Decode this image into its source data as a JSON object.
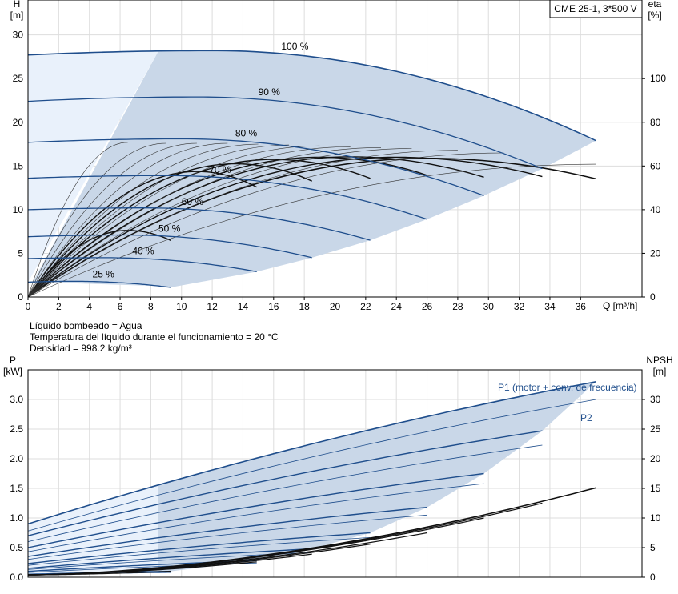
{
  "chart_data": [
    {
      "type": "line",
      "title": "CME 25-1, 3*500 V",
      "xlabel": "Q [m³/h]",
      "ylabel_left": "H",
      "ylabel_left_unit": "[m]",
      "ylabel_right": "eta",
      "ylabel_right_unit": "[%]",
      "xlim": [
        0,
        40
      ],
      "ylim_left": [
        0,
        34
      ],
      "ylim_right": [
        0,
        136
      ],
      "x_ticks": [
        "0",
        "2",
        "4",
        "6",
        "8",
        "10",
        "12",
        "14",
        "16",
        "18",
        "20",
        "22",
        "24",
        "26",
        "28",
        "30",
        "32",
        "34",
        "36"
      ],
      "y_left_ticks": [
        "0",
        "5",
        "10",
        "15",
        "20",
        "25",
        "30"
      ],
      "y_right_ticks": [
        "0",
        "20",
        "40",
        "60",
        "80",
        "100"
      ],
      "grid": true,
      "head_curves": [
        {
          "name": "100 %",
          "q_max": 37,
          "h0": 27.7,
          "h_max": 28.2,
          "q_top": 12,
          "h_end": 17.9
        },
        {
          "name": "90 %",
          "q_max": 33.5,
          "h0": 22.4,
          "h_max": 22.9,
          "q_top": 11,
          "h_end": 14.7
        },
        {
          "name": "80 %",
          "q_max": 29.7,
          "h0": 17.7,
          "h_max": 18.1,
          "q_top": 10,
          "h_end": 11.6
        },
        {
          "name": "70 %",
          "q_max": 26,
          "h0": 13.6,
          "h_max": 13.9,
          "q_top": 9,
          "h_end": 8.9
        },
        {
          "name": "60 %",
          "q_max": 22.3,
          "h0": 10.0,
          "h_max": 10.2,
          "q_top": 7.6,
          "h_end": 6.5
        },
        {
          "name": "50 %",
          "q_max": 18.5,
          "h0": 6.9,
          "h_max": 7.1,
          "q_top": 6.2,
          "h_end": 4.5
        },
        {
          "name": "40 %",
          "q_max": 14.9,
          "h0": 4.4,
          "h_max": 4.5,
          "q_top": 5,
          "h_end": 2.9
        },
        {
          "name": "25 %",
          "q_max": 9.3,
          "h0": 1.7,
          "h_max": 1.8,
          "q_top": 3,
          "h_end": 1.1
        }
      ],
      "eta_curves": [
        {
          "q_max": 37,
          "eta_max": 63.5,
          "q_peak": 26
        },
        {
          "q_max": 33.5,
          "eta_max": 64,
          "q_peak": 24
        },
        {
          "q_max": 29.7,
          "eta_max": 64.2,
          "q_peak": 21
        },
        {
          "q_max": 26,
          "eta_max": 64,
          "q_peak": 19
        },
        {
          "q_max": 22.3,
          "eta_max": 63,
          "q_peak": 16
        },
        {
          "q_max": 18.5,
          "eta_max": 61,
          "q_peak": 13.5
        },
        {
          "q_max": 14.9,
          "eta_max": 57.5,
          "q_peak": 11
        },
        {
          "q_max": 9.3,
          "eta_max": 30.5,
          "q_peak": 6.5
        }
      ],
      "annotations": [
        "Líquido bombeado = Agua",
        "Temperatura del líquido durante el funcionamiento = 20 °C",
        "Densidad = 998.2 kg/m³"
      ]
    },
    {
      "type": "line",
      "ylabel_left": "P",
      "ylabel_left_unit": "[kW]",
      "ylabel_right": "NPSH",
      "ylabel_right_unit": "[m]",
      "xlim": [
        0,
        40
      ],
      "ylim_left": [
        0,
        3.5
      ],
      "ylim_right": [
        0,
        35
      ],
      "y_left_ticks": [
        "0.0",
        "0.5",
        "1.0",
        "1.5",
        "2.0",
        "2.5",
        "3.0"
      ],
      "y_right_ticks": [
        "0",
        "5",
        "10",
        "15",
        "20",
        "25",
        "30"
      ],
      "grid": true,
      "series_labels": [
        "P1 (motor + conv. de frecuencia)",
        "P2"
      ],
      "p1_curves": [
        {
          "q_max": 37,
          "p0": 0.9,
          "p_end": 3.3
        },
        {
          "q_max": 33.5,
          "p0": 0.7,
          "p_end": 2.47
        },
        {
          "q_max": 29.7,
          "p0": 0.5,
          "p_end": 1.75
        },
        {
          "q_max": 26,
          "p0": 0.35,
          "p_end": 1.18
        },
        {
          "q_max": 22.3,
          "p0": 0.23,
          "p_end": 0.75
        },
        {
          "q_max": 18.5,
          "p0": 0.15,
          "p_end": 0.48
        },
        {
          "q_max": 14.9,
          "p0": 0.1,
          "p_end": 0.28
        },
        {
          "q_max": 9.3,
          "p0": 0.05,
          "p_end": 0.1
        }
      ],
      "p2_curves": [
        {
          "q_max": 37,
          "p0": 0.78,
          "p_end": 3.0
        },
        {
          "q_max": 33.5,
          "p0": 0.6,
          "p_end": 2.23
        },
        {
          "q_max": 29.7,
          "p0": 0.43,
          "p_end": 1.58
        },
        {
          "q_max": 26,
          "p0": 0.3,
          "p_end": 1.05
        },
        {
          "q_max": 22.3,
          "p0": 0.2,
          "p_end": 0.67
        },
        {
          "q_max": 18.5,
          "p0": 0.13,
          "p_end": 0.42
        },
        {
          "q_max": 14.9,
          "p0": 0.08,
          "p_end": 0.24
        },
        {
          "q_max": 9.3,
          "p0": 0.04,
          "p_end": 0.08
        }
      ],
      "npsh_curves": [
        {
          "q_max": 37,
          "n0": 0.4,
          "n_end": 15.1
        },
        {
          "q_max": 33.5,
          "n0": 0.4,
          "n_end": 12.5
        },
        {
          "q_max": 29.7,
          "n0": 0.4,
          "n_end": 10.0
        },
        {
          "q_max": 26,
          "n0": 0.4,
          "n_end": 7.5
        },
        {
          "q_max": 22.3,
          "n0": 0.4,
          "n_end": 5.6
        },
        {
          "q_max": 18.5,
          "n0": 0.4,
          "n_end": 3.9
        },
        {
          "q_max": 14.9,
          "n0": 0.4,
          "n_end": 2.6
        },
        {
          "q_max": 9.3,
          "n0": 0.4,
          "n_end": 1.0
        }
      ]
    }
  ]
}
